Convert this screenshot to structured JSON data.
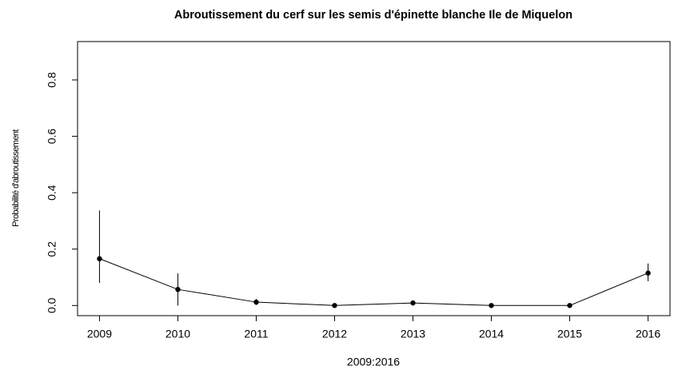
{
  "chart_data": {
    "type": "line",
    "title": "Abroutissement du cerf sur les semis d'épinette blanche Ile de Miquelon",
    "xlabel": "2009:2016",
    "ylabel": "Probabilité d'abroutissement",
    "x": [
      2009,
      2010,
      2011,
      2012,
      2013,
      2014,
      2015,
      2016
    ],
    "values": [
      0.166,
      0.057,
      0.012,
      0,
      0.009,
      0,
      0,
      0.115
    ],
    "lower": [
      0.08,
      0,
      0.002,
      0,
      0.004,
      0,
      0,
      0.086
    ],
    "upper": [
      0.337,
      0.114,
      0.023,
      0,
      0.015,
      0,
      0,
      0.149
    ],
    "color": "#000000",
    "xlim": [
      2008.72,
      2016.28
    ],
    "xticks": [
      2009,
      2010,
      2011,
      2012,
      2013,
      2014,
      2015,
      2016
    ],
    "ylim": [
      -0.036,
      0.936
    ],
    "yticks": [
      {
        "value": 0,
        "label": "0.0"
      },
      0.2,
      0.4,
      0.6,
      0.8
    ]
  }
}
